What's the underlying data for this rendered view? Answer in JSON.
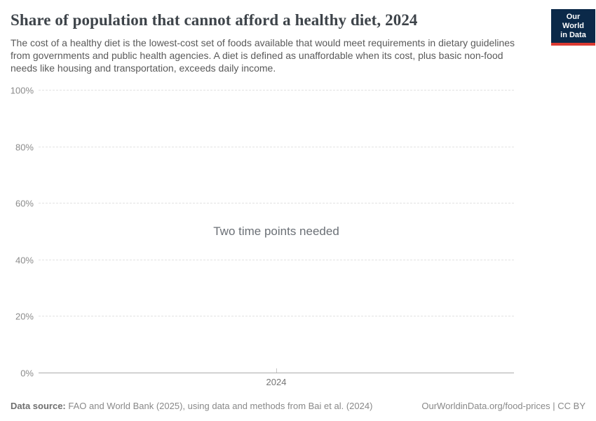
{
  "header": {
    "title": "Share of population that cannot afford a healthy diet, 2024",
    "subtitle": "The cost of a healthy diet is the lowest-cost set of foods available that would meet requirements in dietary guidelines from governments and public health agencies. A diet is defined as unaffordable when its cost, plus basic non-food needs like housing and transportation, exceeds daily income.",
    "logo": {
      "line1": "Our World",
      "line2": "in Data",
      "bg_color": "#0b2949",
      "accent_color": "#dc3a32"
    }
  },
  "chart_data": {
    "type": "line",
    "title": "Share of population that cannot afford a healthy diet, 2024",
    "series": [],
    "x": [],
    "empty_message": "Two time points needed",
    "xticks": [
      "2024"
    ],
    "yticks": [
      0,
      20,
      40,
      60,
      80,
      100
    ],
    "ytick_suffix": "%",
    "ylim": [
      0,
      100
    ],
    "grid": true,
    "legend": "none",
    "colors": {
      "gridline": "#e2e2e2",
      "axis_line": "#acacac",
      "tick_label": "#8b8b8b"
    }
  },
  "footer": {
    "data_source_label": "Data source:",
    "data_source_text": " FAO and World Bank (2025), using data and methods from Bai et al. (2024)",
    "citation": "OurWorldinData.org/food-prices | CC BY"
  }
}
